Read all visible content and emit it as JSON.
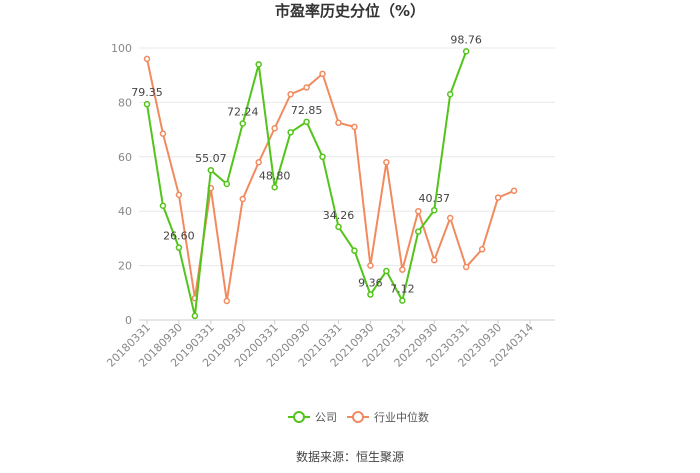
{
  "chart_data": {
    "type": "line",
    "title": "市盈率历史分位（%）",
    "x": [
      "20180331",
      "20180630",
      "20180930",
      "20181231",
      "20190331",
      "20190630",
      "20190930",
      "20191231",
      "20200331",
      "20200630",
      "20200930",
      "20201231",
      "20210331",
      "20210630",
      "20210930",
      "20211231",
      "20220331",
      "20220630",
      "20220930",
      "20221231",
      "20230331",
      "20230630",
      "20230930",
      "20231231",
      "20240314"
    ],
    "x_tick_labels": [
      "20180331",
      "20180930",
      "20190331",
      "20190930",
      "20200331",
      "20200930",
      "20210331",
      "20210930",
      "20220331",
      "20220930",
      "20230331",
      "20230930",
      "20240314"
    ],
    "ylim": [
      0,
      100
    ],
    "y_ticks": [
      0,
      20,
      40,
      60,
      80,
      100
    ],
    "grid": true,
    "legend_position": "bottom",
    "series": [
      {
        "name": "公司",
        "color": "#52c41a",
        "values": [
          79.35,
          42.0,
          26.6,
          1.5,
          55.07,
          50.0,
          72.24,
          94.0,
          48.8,
          69.0,
          72.85,
          60.0,
          34.26,
          25.5,
          9.36,
          18.0,
          7.12,
          32.5,
          40.37,
          83.0,
          98.76,
          null,
          null,
          null,
          null
        ],
        "labels": {
          "0": "79.35",
          "2": "26.60",
          "4": "55.07",
          "6": "72.24",
          "8": "48.80",
          "10": "72.85",
          "12": "34.26",
          "14": "9.36",
          "16": "7.12",
          "18": "40.37",
          "20": "98.76"
        }
      },
      {
        "name": "行业中位数",
        "color": "#f28a5f",
        "values": [
          96.0,
          68.5,
          46.0,
          8.0,
          48.5,
          7.0,
          44.5,
          58.0,
          70.5,
          83.0,
          85.5,
          90.5,
          72.5,
          71.0,
          20.0,
          58.0,
          18.5,
          40.0,
          22.0,
          37.5,
          19.5,
          26.0,
          45.0,
          47.5,
          null
        ]
      }
    ]
  },
  "source_text": "数据来源：恒生聚源"
}
